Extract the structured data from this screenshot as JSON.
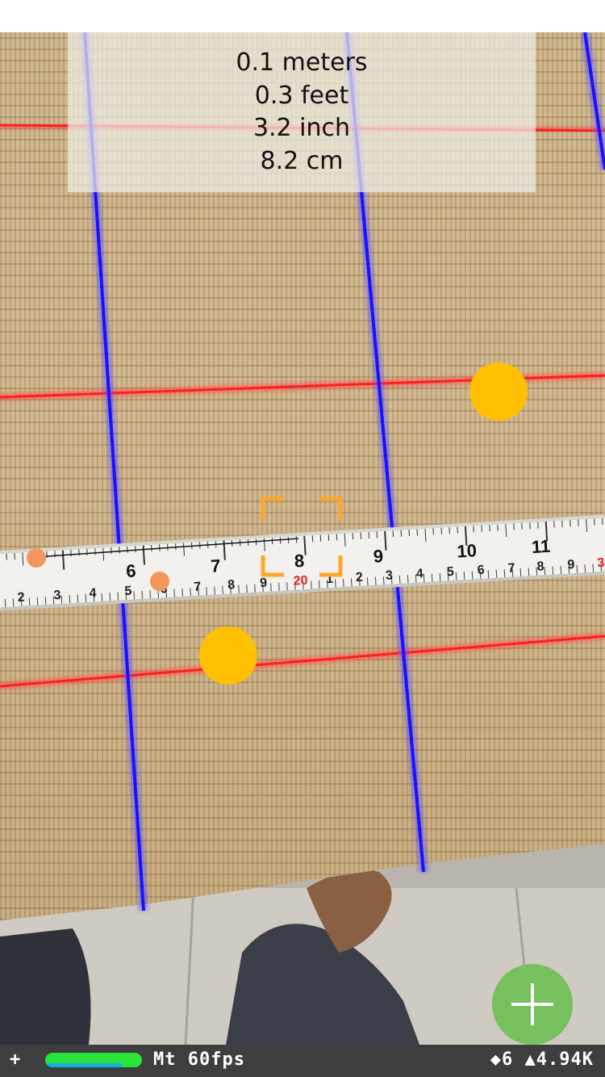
{
  "measurement": {
    "meters": "0.1 meters",
    "feet": "0.3 feet",
    "inch": "3.2 inch",
    "cm": "8.2 cm"
  },
  "tape": {
    "big_numbers": [
      "6",
      "7",
      "8",
      "9",
      "10",
      "11"
    ],
    "small_numbers": [
      "2",
      "3",
      "4",
      "5",
      "6",
      "7",
      "8",
      "9",
      "20",
      "1",
      "2",
      "3",
      "4",
      "5",
      "6",
      "7",
      "8",
      "9",
      "3"
    ]
  },
  "status_bar": {
    "plus": "+",
    "fps_label": "Mt 60fps",
    "stats": "◆6 ▲4.94K",
    "fps_level": 0.8
  },
  "colors": {
    "plane_line_horizontal": "#ff1f1f",
    "plane_line_vertical": "#1a10ff",
    "anchor_point": "#ffc000",
    "measure_point": "#f4955e",
    "focus_bracket": "#ffa62b",
    "add_button": "#76c05e"
  },
  "icons": {
    "add": "plus-icon",
    "focus": "focus-square-icon"
  }
}
